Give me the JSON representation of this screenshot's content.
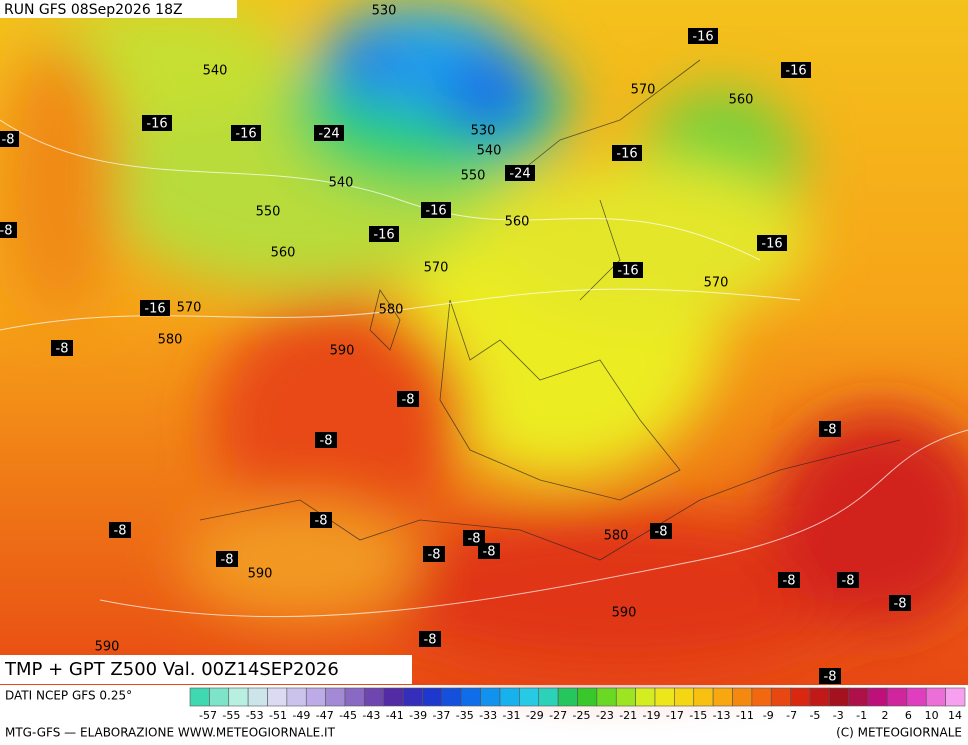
{
  "header": {
    "run": "RUN GFS 08Sep2026 18Z"
  },
  "map": {
    "title": "TMP + GPT Z500 Val. 00Z14SEP2026",
    "contour_labels": [
      "530",
      "540",
      "-16",
      "-16",
      "570",
      "560",
      "-16",
      "-8",
      "-16",
      "-24",
      "530",
      "540",
      "-16",
      "550",
      "-24",
      "540",
      "-16",
      "550",
      "560",
      "-8",
      "-16",
      "-16",
      "560",
      "570",
      "-16",
      "570",
      "-16",
      "570",
      "580",
      "-8",
      "580",
      "590",
      "-8",
      "-8",
      "-8",
      "-8",
      "-8",
      "580",
      "-8",
      "-8",
      "-8",
      "-8",
      "-8",
      "590",
      "-8",
      "-8",
      "-8",
      "590",
      "-8",
      "590",
      "-8"
    ]
  },
  "legend": {
    "source": "DATI NCEP GFS 0.25°",
    "labels": [
      "-57",
      "-55",
      "-53",
      "-51",
      "-49",
      "-47",
      "-45",
      "-43",
      "-41",
      "-39",
      "-37",
      "-35",
      "-33",
      "-31",
      "-29",
      "-27",
      "-25",
      "-23",
      "-21",
      "-19",
      "-17",
      "-15",
      "-13",
      "-11",
      "-9",
      "-7",
      "-5",
      "-3",
      "-1",
      "2",
      "6",
      "10",
      "14"
    ]
  },
  "footer": {
    "left": "MTG-GFS — ELABORAZIONE WWW.METEOGIORNALE.IT",
    "right": "(C) METEOGIORNALE"
  }
}
